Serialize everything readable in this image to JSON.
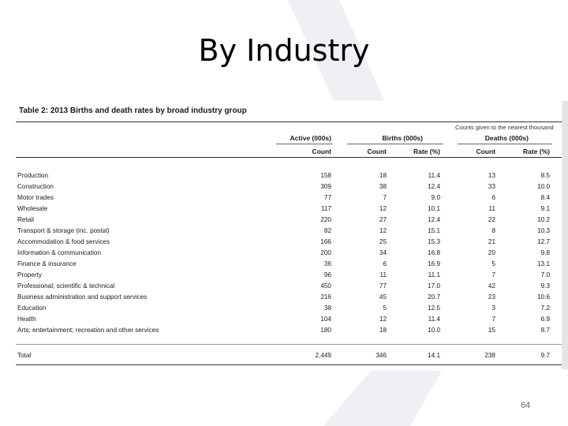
{
  "slide": {
    "title": "By Industry",
    "page_number": "64"
  },
  "table": {
    "caption": "Table 2: 2013 Births and death rates by broad industry group",
    "note": "Counts given to the nearest thousand",
    "group_headers": {
      "active": "Active (000s)",
      "births": "Births (000s)",
      "deaths": "Deaths (000s)"
    },
    "sub_headers": [
      "Count",
      "Count",
      "Rate (%)",
      "Count",
      "Rate (%)"
    ],
    "rows": [
      {
        "industry": "Production",
        "active": "158",
        "births": "18",
        "birth_rate": "11.4",
        "deaths": "13",
        "death_rate": "8.5"
      },
      {
        "industry": "Construction",
        "active": "309",
        "births": "38",
        "birth_rate": "12.4",
        "deaths": "33",
        "death_rate": "10.0"
      },
      {
        "industry": "Motor trades",
        "active": "77",
        "births": "7",
        "birth_rate": "9.0",
        "deaths": "6",
        "death_rate": "8.4"
      },
      {
        "industry": "Wholesale",
        "active": "117",
        "births": "12",
        "birth_rate": "10.1",
        "deaths": "11",
        "death_rate": "9.1"
      },
      {
        "industry": "Retail",
        "active": "220",
        "births": "27",
        "birth_rate": "12.4",
        "deaths": "22",
        "death_rate": "10.2"
      },
      {
        "industry": "Transport & storage (inc. postal)",
        "active": "82",
        "births": "12",
        "birth_rate": "15.1",
        "deaths": "8",
        "death_rate": "10.3"
      },
      {
        "industry": "Accommodation & food services",
        "active": "166",
        "births": "25",
        "birth_rate": "15.3",
        "deaths": "21",
        "death_rate": "12.7"
      },
      {
        "industry": "Information & communication",
        "active": "200",
        "births": "34",
        "birth_rate": "16.8",
        "deaths": "20",
        "death_rate": "9.8"
      },
      {
        "industry": "Finance & insurance",
        "active": "36",
        "births": "6",
        "birth_rate": "16.9",
        "deaths": "5",
        "death_rate": "13.1"
      },
      {
        "industry": "Property",
        "active": "96",
        "births": "11",
        "birth_rate": "11.1",
        "deaths": "7",
        "death_rate": "7.0"
      },
      {
        "industry": "Professional; scientific & technical",
        "active": "450",
        "births": "77",
        "birth_rate": "17.0",
        "deaths": "42",
        "death_rate": "9.3"
      },
      {
        "industry": "Business administration and support services",
        "active": "216",
        "births": "45",
        "birth_rate": "20.7",
        "deaths": "23",
        "death_rate": "10.6"
      },
      {
        "industry": "Education",
        "active": "38",
        "births": "5",
        "birth_rate": "12.5",
        "deaths": "3",
        "death_rate": "7.2"
      },
      {
        "industry": "Health",
        "active": "104",
        "births": "12",
        "birth_rate": "11.4",
        "deaths": "7",
        "death_rate": "6.9"
      },
      {
        "industry": "Arts; entertainment; recreation and other services",
        "active": "180",
        "births": "18",
        "birth_rate": "10.0",
        "deaths": "15",
        "death_rate": "8.7"
      }
    ],
    "total": {
      "industry": "Total",
      "active": "2,449",
      "births": "346",
      "birth_rate": "14.1",
      "deaths": "238",
      "death_rate": "9.7"
    }
  },
  "colors": {
    "watermark": "#eef0f3",
    "rule": "#333333"
  }
}
